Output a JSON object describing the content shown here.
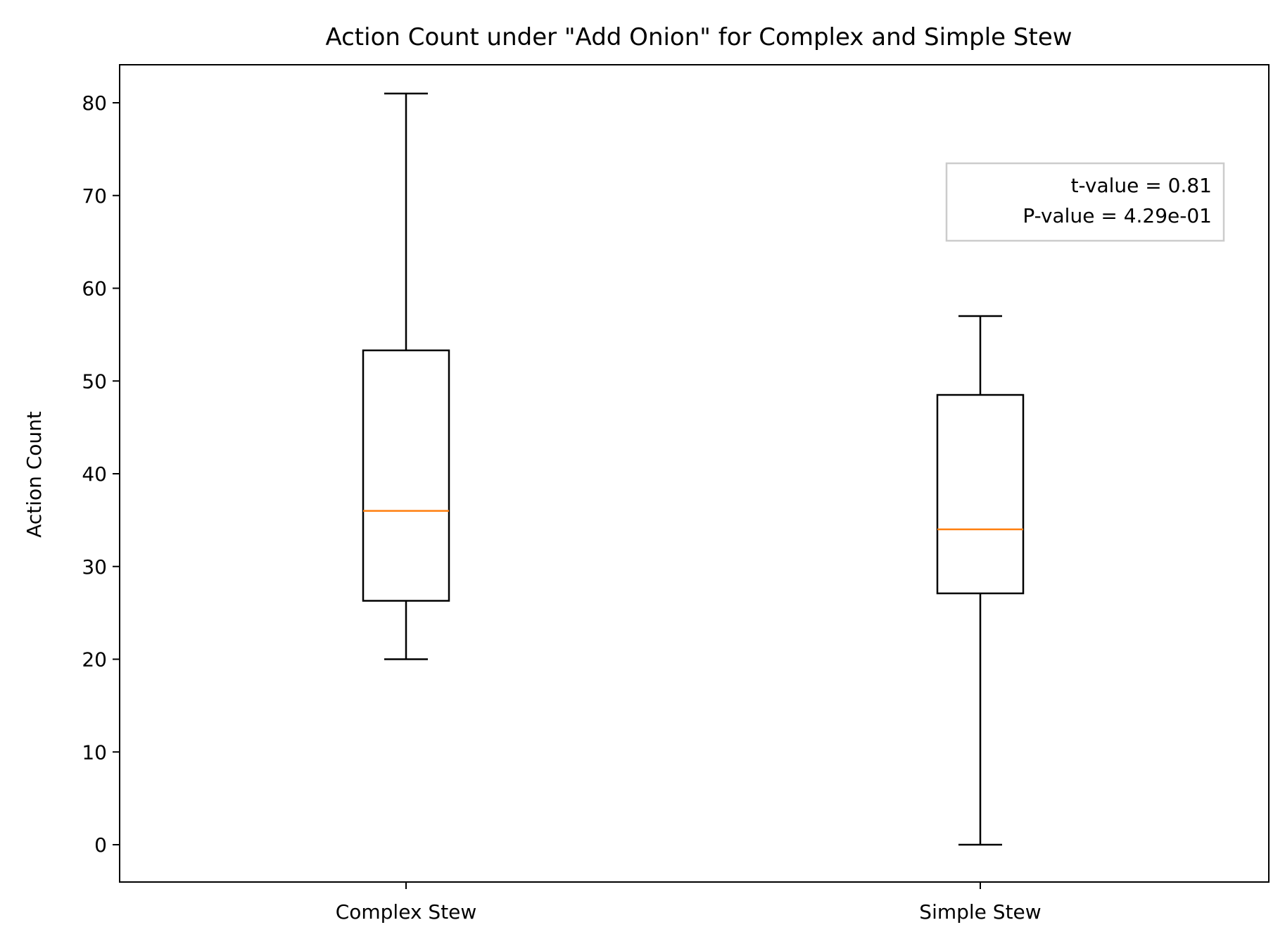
{
  "chart_data": {
    "type": "box",
    "title": "Action Count under \"Add Onion\" for Complex and Simple Stew",
    "xlabel": "",
    "ylabel": "Action Count",
    "ylim": [
      -4,
      85
    ],
    "yticks": [
      0,
      10,
      20,
      30,
      40,
      50,
      60,
      70,
      80
    ],
    "grid": false,
    "categories": [
      "Complex Stew",
      "Simple Stew"
    ],
    "boxes": [
      {
        "category": "Complex Stew",
        "whisker_low": 20,
        "q1": 26.3,
        "median": 36,
        "q3": 53.3,
        "whisker_high": 81
      },
      {
        "category": "Simple Stew",
        "whisker_low": 0,
        "q1": 27.1,
        "median": 34,
        "q3": 48.5,
        "whisker_high": 57
      }
    ],
    "annotation": {
      "lines": [
        "t-value = 0.81",
        "P-value = 4.29e-01"
      ],
      "placement": "top-right"
    },
    "colors": {
      "box": "#000000",
      "median": "#ff7f0e",
      "annotation_border": "#cccccc"
    }
  }
}
